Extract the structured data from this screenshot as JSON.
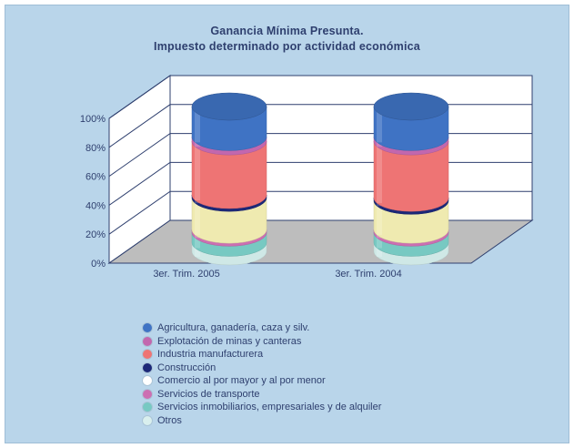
{
  "chart_data": {
    "type": "bar",
    "subtype": "stacked-100-cylinder-3d",
    "title": "Ganancia Mínima Presunta.",
    "subtitle": "Impuesto determinado por actividad económica",
    "xlabel": "",
    "ylabel": "",
    "ylim": [
      0,
      100
    ],
    "y_ticks": [
      "0%",
      "20%",
      "40%",
      "60%",
      "80%",
      "100%"
    ],
    "categories": [
      "3er. Trim. 2005",
      "3er. Trim. 2004"
    ],
    "grid": true,
    "legend_position": "bottom",
    "series": [
      {
        "name": "Otros",
        "color": "#cfe8e6",
        "values": [
          6,
          6
        ]
      },
      {
        "name": "Servicios inmobiliarios, empresariales y de alquiler",
        "color": "#77c9c2",
        "values": [
          7,
          7
        ]
      },
      {
        "name": "Servicios de transporte",
        "color": "#cc6fb2",
        "values": [
          2,
          2
        ]
      },
      {
        "name": "Comercio al por mayor y al por menor",
        "color": "#efeab0",
        "values": [
          22,
          20
        ]
      },
      {
        "name": "Construcción",
        "color": "#1c2878",
        "values": [
          2,
          2
        ]
      },
      {
        "name": "Industria manufacturera",
        "color": "#ee7474",
        "values": [
          37,
          39
        ]
      },
      {
        "name": "Explotación de minas y canteras",
        "color": "#c267ae",
        "values": [
          3,
          3
        ]
      },
      {
        "name": "Agricultura, ganadería, caza y silv.",
        "color": "#3f73c4",
        "values": [
          21,
          21
        ]
      }
    ]
  },
  "legend": [
    {
      "label": "Agricultura, ganadería, caza y silv.",
      "color": "#3f73c4"
    },
    {
      "label": "Explotación de minas y canteras",
      "color": "#c267ae"
    },
    {
      "label": "Industria manufacturera",
      "color": "#ee7474"
    },
    {
      "label": "Construcción",
      "color": "#1c2878"
    },
    {
      "label": "Comercio al por mayor y al por menor",
      "color": "#ffffff"
    },
    {
      "label": "Servicios de transporte",
      "color": "#cc6fb2"
    },
    {
      "label": "Servicios inmobiliarios, empresariales y de alquiler",
      "color": "#77c9c2"
    },
    {
      "label": "Otros",
      "color": "#d9efee"
    }
  ]
}
